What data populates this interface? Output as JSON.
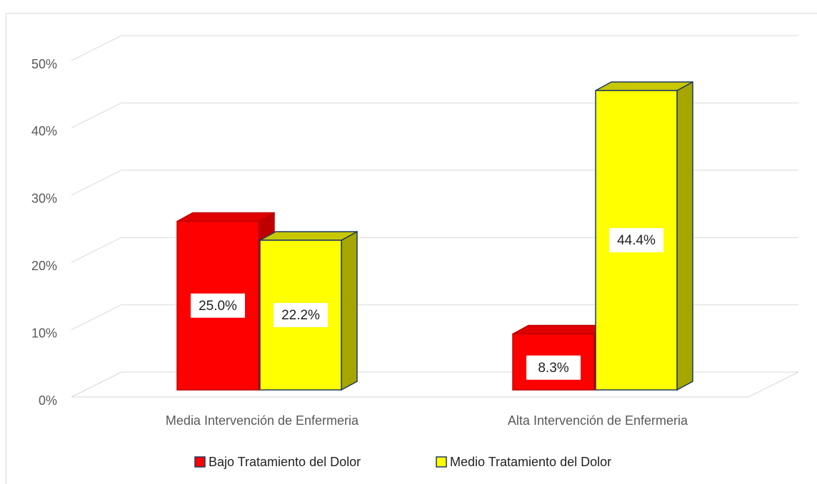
{
  "chart_data": {
    "type": "bar3d",
    "categories": [
      "Media Intervención de Enfermeria",
      "Alta Intervención de Enfermeria"
    ],
    "series": [
      {
        "name": "Bajo Tratamiento del Dolor",
        "color": "#ff0000",
        "values": [
          25.0,
          8.3
        ],
        "value_labels": [
          "25.0%",
          "8.3%"
        ]
      },
      {
        "name": "Medio Tratamiento del Dolor",
        "color": "#ffff00",
        "values": [
          22.2,
          44.4
        ],
        "value_labels": [
          "22.2%",
          "44.4%"
        ]
      }
    ],
    "ylim": [
      0,
      50
    ],
    "yticks": [
      {
        "value": 0,
        "label": "0%"
      },
      {
        "value": 10,
        "label": "10%"
      },
      {
        "value": 20,
        "label": "20%"
      },
      {
        "value": 30,
        "label": "30%"
      },
      {
        "value": 40,
        "label": "40%"
      },
      {
        "value": 50,
        "label": "50%"
      }
    ],
    "grid": true,
    "legend": "bottom"
  }
}
